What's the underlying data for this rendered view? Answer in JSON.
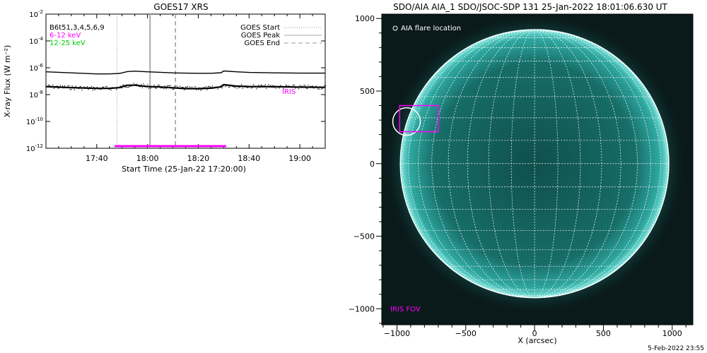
{
  "chart_data": [
    {
      "type": "line",
      "title": "GOES17 XRS",
      "xlabel": "Start Time (25-Jan-22 17:20:00)",
      "ylabel": "X-ray Flux (W m⁻²)",
      "yscale": "log",
      "ylim_exponents": [
        -12,
        -2
      ],
      "ytick_exponents": [
        -2,
        -4,
        -6,
        -8,
        -10,
        -12
      ],
      "xlim_min": [
        0,
        110
      ],
      "xticks": [
        {
          "t": 20,
          "label": "17:40"
        },
        {
          "t": 40,
          "label": "18:00"
        },
        {
          "t": 60,
          "label": "18:20"
        },
        {
          "t": 80,
          "label": "18:40"
        },
        {
          "t": 100,
          "label": "19:00"
        }
      ],
      "series": [
        {
          "name": "12-25 keV",
          "color": "#00cc00",
          "x": [
            0,
            10,
            20,
            25,
            29,
            32,
            35,
            40,
            45,
            50,
            55,
            60,
            65,
            69,
            70,
            75,
            80,
            90,
            100,
            110
          ],
          "values": [
            5e-07,
            4.2e-07,
            3.5e-07,
            3.5e-07,
            3.8e-07,
            5.2e-07,
            5.6e-07,
            5e-07,
            4.6e-07,
            4.2e-07,
            4e-07,
            3.9e-07,
            3.9e-07,
            4.3e-07,
            5.8e-07,
            5e-07,
            4.5e-07,
            4.2e-07,
            4e-07,
            4e-07
          ]
        },
        {
          "name": "6-12 keV",
          "color": "#ff00ff",
          "x": [
            0,
            10,
            20,
            25,
            29,
            32,
            35,
            40,
            45,
            50,
            55,
            60,
            65,
            69,
            70,
            75,
            80,
            90,
            100,
            110
          ],
          "values": [
            4e-08,
            3.3e-08,
            2.9e-08,
            2.9e-08,
            3.3e-08,
            5e-08,
            5e-08,
            4e-08,
            3.7e-08,
            3.2e-08,
            2.8e-08,
            2.8e-08,
            3e-08,
            3.8e-08,
            5.5e-08,
            4.3e-08,
            4e-08,
            3.9e-08,
            3.6e-08,
            3.5e-08
          ]
        }
      ],
      "legend": [
        "B6t51,3,4,5,6,9",
        "6-12 keV",
        "12-25 keV"
      ],
      "legend_colors": [
        "#000000",
        "#ff00ff",
        "#00cc00"
      ],
      "event_markers": [
        {
          "label": "GOES Start",
          "t": 28,
          "style": "dotted"
        },
        {
          "label": "GOES Peak",
          "t": 41,
          "style": "solid"
        },
        {
          "label": "GOES End",
          "t": 51,
          "style": "dashed"
        }
      ],
      "iris_bar": {
        "label": "IRIS",
        "start": 27,
        "end": 71,
        "color": "#ff00ff",
        "label_t": 93,
        "label_value_exponent": -7.8
      }
    },
    {
      "type": "image",
      "title": "SDO/AIA AIA_1 SDO/JSOC-SDP 131 25-Jan-2022 18:01:06.630 UT",
      "xlabel": "X (arcsec)",
      "ylabel": "",
      "xlim": [
        -1110,
        1150
      ],
      "ylim": [
        -1110,
        1030
      ],
      "xticks": [
        -1000,
        -500,
        0,
        500,
        1000
      ],
      "yticks": [
        -1000,
        -500,
        0,
        500,
        1000
      ],
      "disk_radius_arcsec": 975,
      "flare_label": "AIA flare location",
      "flare_location": {
        "x": -930,
        "y": 290,
        "radius": 100
      },
      "iris_fov": {
        "label": "IRIS FOV",
        "x0": -980,
        "x1": -700,
        "y0": 220,
        "y1": 400
      }
    }
  ],
  "footer": {
    "date": "5-Feb-2022 23:55"
  }
}
